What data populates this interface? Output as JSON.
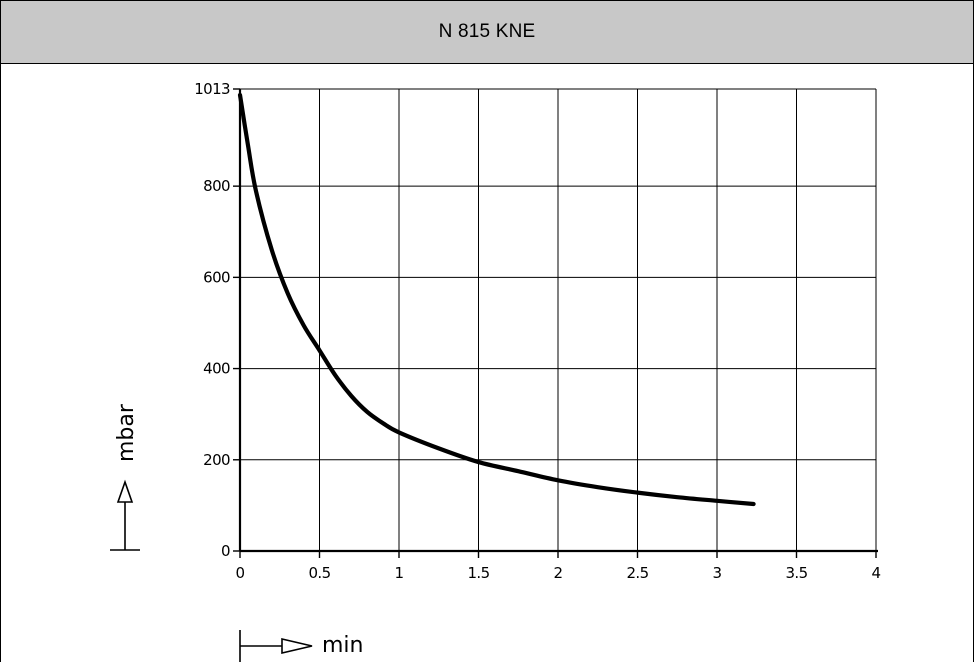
{
  "chart_data": {
    "type": "line",
    "title": "N 815 KNE",
    "xlabel": "min",
    "ylabel": "mbar",
    "xlim": [
      0,
      4
    ],
    "ylim": [
      0,
      1013
    ],
    "x_ticks": [
      0,
      0.5,
      1,
      1.5,
      2,
      2.5,
      3,
      3.5,
      4
    ],
    "x_tick_labels": [
      "0",
      "0.5",
      "1",
      "1.5",
      "2",
      "2.5",
      "3",
      "3.5",
      "4"
    ],
    "y_ticks": [
      0,
      200,
      400,
      600,
      800,
      1013
    ],
    "y_tick_labels": [
      "0",
      "200",
      "400",
      "600",
      "800",
      "1013"
    ],
    "grid": true,
    "series": [
      {
        "x": [
          0,
          0.05,
          0.1,
          0.2,
          0.3,
          0.4,
          0.5,
          0.6,
          0.7,
          0.8,
          0.9,
          1.0,
          1.25,
          1.5,
          1.75,
          2.0,
          2.25,
          2.5,
          2.75,
          3.0,
          3.23
        ],
        "values": [
          1000,
          890,
          790,
          660,
          565,
          495,
          440,
          385,
          340,
          305,
          280,
          260,
          225,
          195,
          175,
          155,
          140,
          128,
          118,
          110,
          103
        ]
      }
    ]
  }
}
